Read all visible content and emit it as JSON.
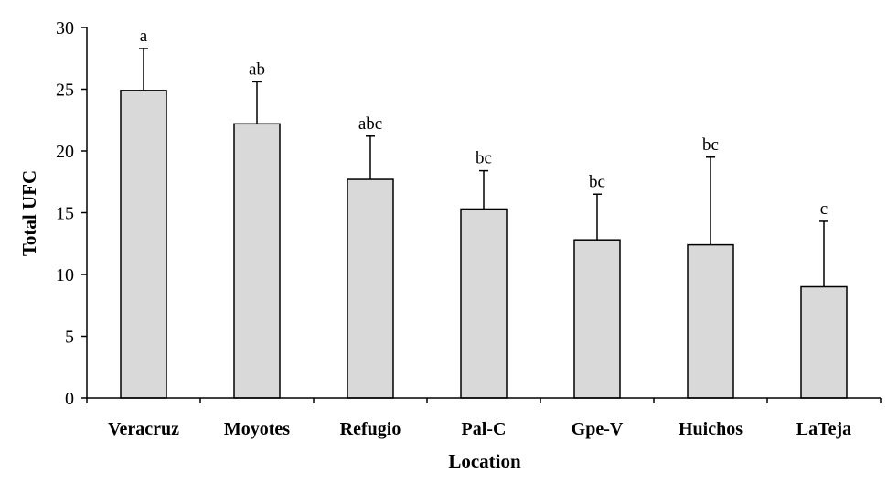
{
  "chart_data": {
    "type": "bar",
    "categories": [
      "Veracruz",
      "Moyotes",
      "Refugio",
      "Pal-C",
      "Gpe-V",
      "Huichos",
      "LaTeja"
    ],
    "values": [
      24.9,
      22.2,
      17.7,
      15.3,
      12.8,
      12.4,
      9.0
    ],
    "error_upper": [
      3.4,
      3.4,
      3.5,
      3.1,
      3.7,
      7.1,
      5.3
    ],
    "significance_labels": [
      "a",
      "ab",
      "abc",
      "bc",
      "bc",
      "bc",
      "c"
    ],
    "xlabel": "Location",
    "ylabel": "Total UFC",
    "ylim": [
      0,
      30
    ],
    "yticks": [
      0,
      5,
      10,
      15,
      20,
      25,
      30
    ],
    "bar_color": "#d9d9d9",
    "bar_edge_color": "#000000",
    "grid": false,
    "legend": "none"
  }
}
